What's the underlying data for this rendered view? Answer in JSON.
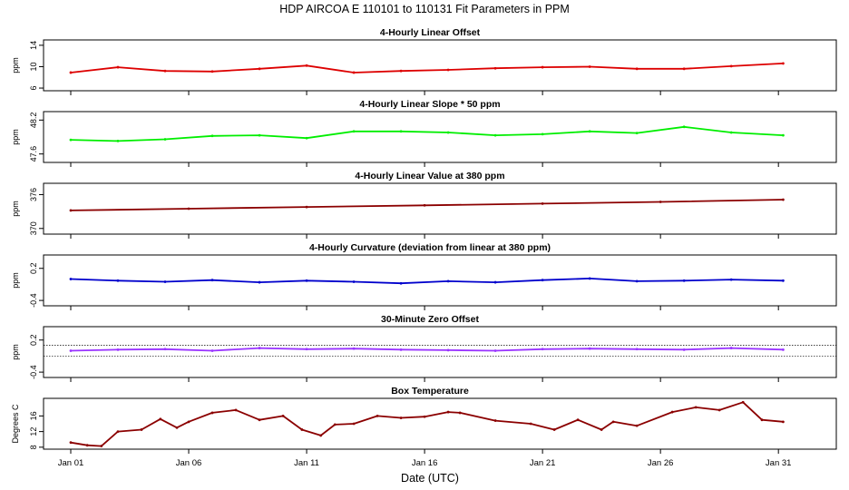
{
  "title": "HDP   AIRCOA E   110101 to 110131   Fit Parameters in PPM",
  "xlabel": "Date (UTC)",
  "x_ticks": [
    {
      "label": "Jan 01",
      "day": 1
    },
    {
      "label": "Jan 06",
      "day": 6
    },
    {
      "label": "Jan 11",
      "day": 11
    },
    {
      "label": "Jan 16",
      "day": 16
    },
    {
      "label": "Jan 21",
      "day": 21
    },
    {
      "label": "Jan 26",
      "day": 26
    },
    {
      "label": "Jan 31",
      "day": 31
    }
  ],
  "chart_data": [
    {
      "type": "line",
      "title": "4-Hourly Linear Offset",
      "ylabel": "ppm",
      "color": "#dd0000",
      "ylim": [
        5.5,
        15
      ],
      "yticks": [
        "6",
        "10",
        "14"
      ],
      "ytick_values": [
        6,
        10,
        14
      ],
      "x": [
        1,
        3,
        5,
        7,
        9,
        11,
        13,
        15,
        17,
        19,
        21,
        23,
        25,
        27,
        29,
        31.2
      ],
      "y": [
        8.9,
        9.9,
        9.2,
        9.1,
        9.6,
        10.2,
        8.9,
        9.2,
        9.4,
        9.7,
        9.9,
        10.0,
        9.6,
        9.6,
        10.1,
        10.6
      ]
    },
    {
      "type": "line",
      "title": "4-Hourly Linear Slope * 50 ppm",
      "ylabel": "ppm",
      "color": "#00ee00",
      "ylim": [
        47.45,
        48.35
      ],
      "yticks": [
        "47.6",
        "48.2"
      ],
      "ytick_values": [
        47.6,
        48.2
      ],
      "x": [
        1,
        3,
        5,
        7,
        9,
        11,
        13,
        15,
        17,
        19,
        21,
        23,
        25,
        27,
        29,
        31.2
      ],
      "y": [
        47.85,
        47.83,
        47.86,
        47.92,
        47.93,
        47.88,
        48.0,
        48.0,
        47.98,
        47.93,
        47.95,
        48.0,
        47.97,
        48.08,
        47.98,
        47.93
      ]
    },
    {
      "type": "line",
      "title": "4-Hourly Linear Value at 380 ppm",
      "ylabel": "ppm",
      "color": "#8b0000",
      "ylim": [
        369,
        378
      ],
      "yticks": [
        "370",
        "376"
      ],
      "ytick_values": [
        370,
        376
      ],
      "x": [
        1,
        6,
        11,
        16,
        21,
        26,
        31.2
      ],
      "y": [
        373.2,
        373.5,
        373.8,
        374.1,
        374.4,
        374.7,
        375.1
      ]
    },
    {
      "type": "line",
      "title": "4-Hourly Curvature (deviation from linear at 380 ppm)",
      "ylabel": "ppm",
      "color": "#0000cc",
      "ylim": [
        -0.5,
        0.45
      ],
      "yticks": [
        "-0.4",
        "0.2"
      ],
      "ytick_values": [
        -0.4,
        0.2
      ],
      "x": [
        1,
        3,
        5,
        7,
        9,
        11,
        13,
        15,
        17,
        19,
        21,
        23,
        25,
        27,
        29,
        31.2
      ],
      "y": [
        0.0,
        -0.03,
        -0.05,
        -0.02,
        -0.06,
        -0.03,
        -0.05,
        -0.08,
        -0.04,
        -0.06,
        -0.02,
        0.01,
        -0.04,
        -0.03,
        -0.01,
        -0.03
      ]
    },
    {
      "type": "line",
      "title": "30-Minute Zero Offset",
      "ylabel": "ppm",
      "color": "#9933ff",
      "ylim": [
        -0.5,
        0.45
      ],
      "yticks": [
        "-0.4",
        "0.2"
      ],
      "ytick_values": [
        -0.4,
        0.2
      ],
      "reference_lines": [
        0.1,
        -0.1
      ],
      "x": [
        1,
        3,
        5,
        7,
        9,
        11,
        13,
        15,
        17,
        19,
        21,
        23,
        25,
        27,
        29,
        31.2
      ],
      "y": [
        0.0,
        0.02,
        0.03,
        0.0,
        0.05,
        0.03,
        0.04,
        0.02,
        0.01,
        0.0,
        0.03,
        0.04,
        0.03,
        0.02,
        0.05,
        0.02
      ]
    },
    {
      "type": "line",
      "title": "Box Temperature",
      "ylabel": "Degrees C",
      "color": "#8b0000",
      "ylim": [
        7.5,
        20.5
      ],
      "yticks": [
        "8",
        "12",
        "16"
      ],
      "ytick_values": [
        8,
        12,
        16
      ],
      "x": [
        1,
        1.7,
        2.3,
        3,
        4,
        4.8,
        5.5,
        6,
        7,
        8,
        9,
        10,
        10.8,
        11.6,
        12.2,
        13,
        14,
        15,
        16,
        17,
        17.5,
        19,
        20.5,
        21.5,
        22.5,
        23.5,
        24,
        25,
        26.5,
        27.5,
        28.5,
        29.5,
        30.3,
        31.2
      ],
      "y": [
        9.2,
        8.5,
        8.3,
        12.0,
        12.5,
        15.2,
        13.0,
        14.5,
        16.8,
        17.5,
        15.0,
        16.0,
        12.5,
        11.0,
        13.8,
        14.0,
        16.0,
        15.5,
        15.8,
        17.0,
        16.8,
        14.8,
        14.0,
        12.5,
        15.0,
        12.5,
        14.5,
        13.5,
        17.0,
        18.2,
        17.5,
        19.5,
        15.0,
        14.5
      ]
    }
  ]
}
